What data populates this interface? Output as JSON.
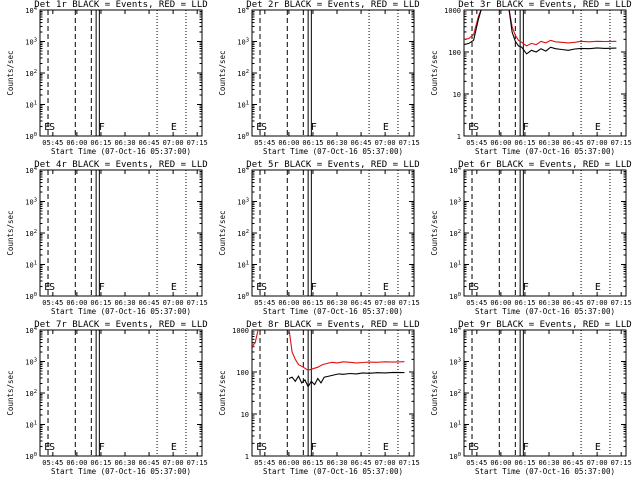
{
  "time_axis": {
    "tick_labels": [
      "05:45",
      "06:00",
      "06:15",
      "06:30",
      "06:45",
      "07:00",
      "07:15"
    ],
    "xlabel": "Start Time (07-Oct-16 05:37:00)"
  },
  "y_axis": {
    "ylabel": "Counts/sec",
    "exp_ticks": [
      {
        "base": "10",
        "exp": "4"
      },
      {
        "base": "10",
        "exp": "3"
      },
      {
        "base": "10",
        "exp": "2"
      },
      {
        "base": "10",
        "exp": "1"
      },
      {
        "base": "10",
        "exp": "0"
      }
    ],
    "plain_ticks": [
      "1000",
      "100",
      "10",
      "1"
    ]
  },
  "colors": {
    "events": "#000000",
    "lld": "#e01010"
  },
  "chart_data": [
    {
      "type": "line",
      "title": "Det 1r BLACK = Events, RED = LLD",
      "has_data": false,
      "xlim": [
        "05:37",
        "07:18"
      ],
      "ylim": [
        1,
        10000
      ],
      "yscale": "log",
      "markers": [
        {
          "label": "E",
          "time": "05:39"
        },
        {
          "label": "S",
          "time": "05:42"
        },
        {
          "label": "F",
          "time": "06:13"
        },
        {
          "label": "E",
          "time": "06:58"
        }
      ],
      "series": []
    },
    {
      "type": "line",
      "title": "Det 2r BLACK = Events, RED = LLD",
      "has_data": false,
      "xlim": [
        "05:37",
        "07:18"
      ],
      "ylim": [
        1,
        10000
      ],
      "yscale": "log",
      "markers": [
        {
          "label": "E",
          "time": "05:39"
        },
        {
          "label": "S",
          "time": "05:42"
        },
        {
          "label": "F",
          "time": "06:13"
        },
        {
          "label": "E",
          "time": "06:58"
        }
      ],
      "series": []
    },
    {
      "type": "line",
      "title": "Det 3r BLACK = Events, RED = LLD",
      "has_data": true,
      "xlim": [
        "05:37",
        "07:18"
      ],
      "ylim": [
        1,
        1000
      ],
      "yscale": "log",
      "markers": [
        {
          "label": "E",
          "time": "05:39"
        },
        {
          "label": "S",
          "time": "05:42"
        },
        {
          "label": "F",
          "time": "06:13"
        },
        {
          "label": "E",
          "time": "06:58"
        }
      ],
      "series": [
        {
          "name": "LLD",
          "color": "#e01010",
          "points": [
            [
              "05:37",
              200
            ],
            [
              "05:40",
              210
            ],
            [
              "05:43",
              260
            ],
            [
              "05:46",
              700
            ],
            [
              "05:48",
              1100
            ],
            [
              "06:05",
              1100
            ],
            [
              "06:07",
              400
            ],
            [
              "06:09",
              250
            ],
            [
              "06:11",
              190
            ],
            [
              "06:13",
              170
            ],
            [
              "06:16",
              140
            ],
            [
              "06:19",
              160
            ],
            [
              "06:22",
              150
            ],
            [
              "06:25",
              180
            ],
            [
              "06:28",
              165
            ],
            [
              "06:31",
              190
            ],
            [
              "06:34",
              175
            ],
            [
              "06:38",
              170
            ],
            [
              "06:42",
              165
            ],
            [
              "06:46",
              170
            ],
            [
              "06:50",
              180
            ],
            [
              "06:55",
              175
            ],
            [
              "07:00",
              180
            ],
            [
              "07:05",
              178
            ],
            [
              "07:12",
              180
            ]
          ]
        },
        {
          "name": "Events",
          "color": "#000000",
          "points": [
            [
              "05:37",
              150
            ],
            [
              "05:40",
              160
            ],
            [
              "05:43",
              190
            ],
            [
              "05:46",
              600
            ],
            [
              "05:48",
              1100
            ],
            [
              "06:05",
              1100
            ],
            [
              "06:07",
              300
            ],
            [
              "06:09",
              180
            ],
            [
              "06:11",
              140
            ],
            [
              "06:13",
              130
            ],
            [
              "06:16",
              90
            ],
            [
              "06:19",
              110
            ],
            [
              "06:22",
              100
            ],
            [
              "06:25",
              120
            ],
            [
              "06:28",
              105
            ],
            [
              "06:31",
              130
            ],
            [
              "06:34",
              120
            ],
            [
              "06:38",
              115
            ],
            [
              "06:42",
              110
            ],
            [
              "06:46",
              118
            ],
            [
              "06:50",
              122
            ],
            [
              "06:55",
              120
            ],
            [
              "07:00",
              125
            ],
            [
              "07:05",
              122
            ],
            [
              "07:12",
              124
            ]
          ]
        }
      ]
    },
    {
      "type": "line",
      "title": "Det 4r BLACK = Events, RED = LLD",
      "has_data": false,
      "xlim": [
        "05:37",
        "07:18"
      ],
      "ylim": [
        1,
        10000
      ],
      "yscale": "log",
      "markers": [
        {
          "label": "E",
          "time": "05:39"
        },
        {
          "label": "S",
          "time": "05:42"
        },
        {
          "label": "F",
          "time": "06:13"
        },
        {
          "label": "E",
          "time": "06:58"
        }
      ],
      "series": []
    },
    {
      "type": "line",
      "title": "Det 5r BLACK = Events, RED = LLD",
      "has_data": false,
      "xlim": [
        "05:37",
        "07:18"
      ],
      "ylim": [
        1,
        10000
      ],
      "yscale": "log",
      "markers": [
        {
          "label": "E",
          "time": "05:39"
        },
        {
          "label": "S",
          "time": "05:42"
        },
        {
          "label": "F",
          "time": "06:13"
        },
        {
          "label": "E",
          "time": "06:58"
        }
      ],
      "series": []
    },
    {
      "type": "line",
      "title": "Det 6r BLACK = Events, RED = LLD",
      "has_data": false,
      "xlim": [
        "05:37",
        "07:18"
      ],
      "ylim": [
        1,
        10000
      ],
      "yscale": "log",
      "markers": [
        {
          "label": "E",
          "time": "05:39"
        },
        {
          "label": "S",
          "time": "05:42"
        },
        {
          "label": "F",
          "time": "06:13"
        },
        {
          "label": "E",
          "time": "06:58"
        }
      ],
      "series": []
    },
    {
      "type": "line",
      "title": "Det 7r BLACK = Events, RED = LLD",
      "has_data": false,
      "xlim": [
        "05:37",
        "07:18"
      ],
      "ylim": [
        1,
        10000
      ],
      "yscale": "log",
      "markers": [
        {
          "label": "E",
          "time": "05:39"
        },
        {
          "label": "S",
          "time": "05:42"
        },
        {
          "label": "F",
          "time": "06:13"
        },
        {
          "label": "E",
          "time": "06:58"
        }
      ],
      "series": []
    },
    {
      "type": "line",
      "title": "Det 8r BLACK = Events, RED = LLD",
      "has_data": true,
      "xlim": [
        "05:37",
        "07:18"
      ],
      "ylim": [
        1,
        1000
      ],
      "yscale": "log",
      "markers": [
        {
          "label": "E",
          "time": "05:39"
        },
        {
          "label": "S",
          "time": "05:42"
        },
        {
          "label": "F",
          "time": "06:13"
        },
        {
          "label": "E",
          "time": "06:58"
        }
      ],
      "series": [
        {
          "name": "LLD",
          "color": "#e01010",
          "points": [
            [
              "05:37",
              400
            ],
            [
              "05:39",
              500
            ],
            [
              "05:41",
              1100
            ],
            [
              "06:00",
              1100
            ],
            [
              "06:02",
              300
            ],
            [
              "06:04",
              200
            ],
            [
              "06:06",
              150
            ],
            [
              "06:09",
              130
            ],
            [
              "06:12",
              110
            ],
            [
              "06:15",
              120
            ],
            [
              "06:18",
              130
            ],
            [
              "06:21",
              150
            ],
            [
              "06:24",
              160
            ],
            [
              "06:27",
              170
            ],
            [
              "06:30",
              165
            ],
            [
              "06:34",
              175
            ],
            [
              "06:38",
              170
            ],
            [
              "06:42",
              165
            ],
            [
              "06:46",
              168
            ],
            [
              "06:50",
              172
            ],
            [
              "06:55",
              170
            ],
            [
              "07:00",
              175
            ],
            [
              "07:05",
              172
            ],
            [
              "07:12",
              176
            ]
          ]
        },
        {
          "name": "Events",
          "color": "#000000",
          "points": [
            [
              "06:00",
              70
            ],
            [
              "06:02",
              75
            ],
            [
              "06:04",
              60
            ],
            [
              "06:06",
              80
            ],
            [
              "06:08",
              55
            ],
            [
              "06:10",
              65
            ],
            [
              "06:12",
              45
            ],
            [
              "06:14",
              60
            ],
            [
              "06:16",
              50
            ],
            [
              "06:18",
              70
            ],
            [
              "06:20",
              55
            ],
            [
              "06:22",
              75
            ],
            [
              "06:25",
              80
            ],
            [
              "06:28",
              85
            ],
            [
              "06:31",
              90
            ],
            [
              "06:34",
              88
            ],
            [
              "06:38",
              92
            ],
            [
              "06:42",
              90
            ],
            [
              "06:46",
              95
            ],
            [
              "06:50",
              93
            ],
            [
              "06:55",
              96
            ],
            [
              "07:00",
              95
            ],
            [
              "07:05",
              98
            ],
            [
              "07:12",
              97
            ]
          ]
        }
      ]
    },
    {
      "type": "line",
      "title": "Det 9r BLACK = Events, RED = LLD",
      "has_data": false,
      "xlim": [
        "05:37",
        "07:18"
      ],
      "ylim": [
        1,
        10000
      ],
      "yscale": "log",
      "markers": [
        {
          "label": "E",
          "time": "05:39"
        },
        {
          "label": "S",
          "time": "05:42"
        },
        {
          "label": "F",
          "time": "06:13"
        },
        {
          "label": "E",
          "time": "06:58"
        }
      ],
      "series": []
    }
  ],
  "reference_lines": {
    "dashed": [
      "05:42",
      "05:59",
      "06:09"
    ],
    "solid": [
      "06:12",
      "06:14"
    ],
    "dotted": [
      "06:50",
      "07:08"
    ]
  }
}
